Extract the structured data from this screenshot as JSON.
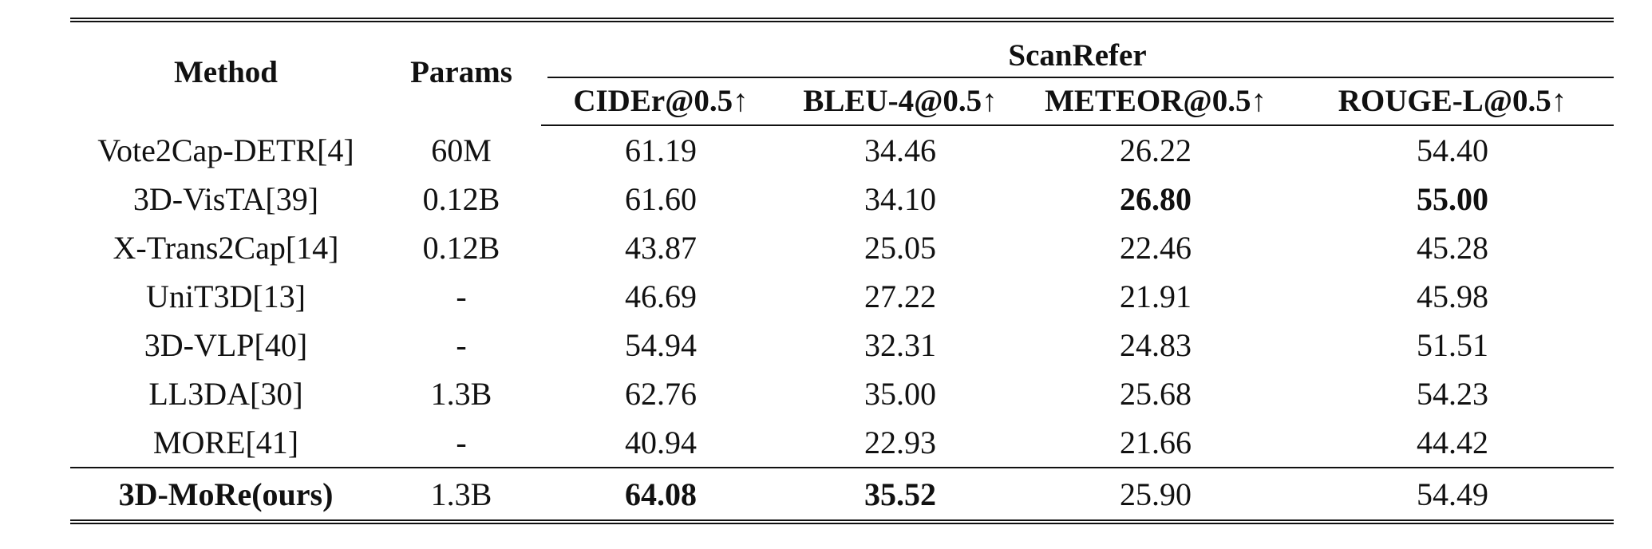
{
  "table": {
    "header": {
      "method": "Method",
      "params": "Params",
      "group": "ScanRefer",
      "metrics": [
        "CIDEr@0.5↑",
        "BLEU-4@0.5↑",
        "METEOR@0.5↑",
        "ROUGE-L@0.5↑"
      ]
    },
    "rows": [
      {
        "method": "Vote2Cap-DETR[4]",
        "params": "60M",
        "values": [
          "61.19",
          "34.46",
          "26.22",
          "54.40"
        ]
      },
      {
        "method": "3D-VisTA[39]",
        "params": "0.12B",
        "values": [
          "61.60",
          "34.10",
          "26.80",
          "55.00"
        ]
      },
      {
        "method": "X-Trans2Cap[14]",
        "params": "0.12B",
        "values": [
          "43.87",
          "25.05",
          "22.46",
          "45.28"
        ]
      },
      {
        "method": "UniT3D[13]",
        "params": "-",
        "values": [
          "46.69",
          "27.22",
          "21.91",
          "45.98"
        ]
      },
      {
        "method": "3D-VLP[40]",
        "params": "-",
        "values": [
          "54.94",
          "32.31",
          "24.83",
          "51.51"
        ]
      },
      {
        "method": "LL3DA[30]",
        "params": "1.3B",
        "values": [
          "62.76",
          "35.00",
          "25.68",
          "54.23"
        ]
      },
      {
        "method": "MORE[41]",
        "params": "-",
        "values": [
          "40.94",
          "22.93",
          "21.66",
          "44.42"
        ]
      }
    ],
    "ours": {
      "method": "3D-MoRe(ours)",
      "params": "1.3B",
      "values": [
        "64.08",
        "35.52",
        "25.90",
        "54.49"
      ]
    }
  }
}
